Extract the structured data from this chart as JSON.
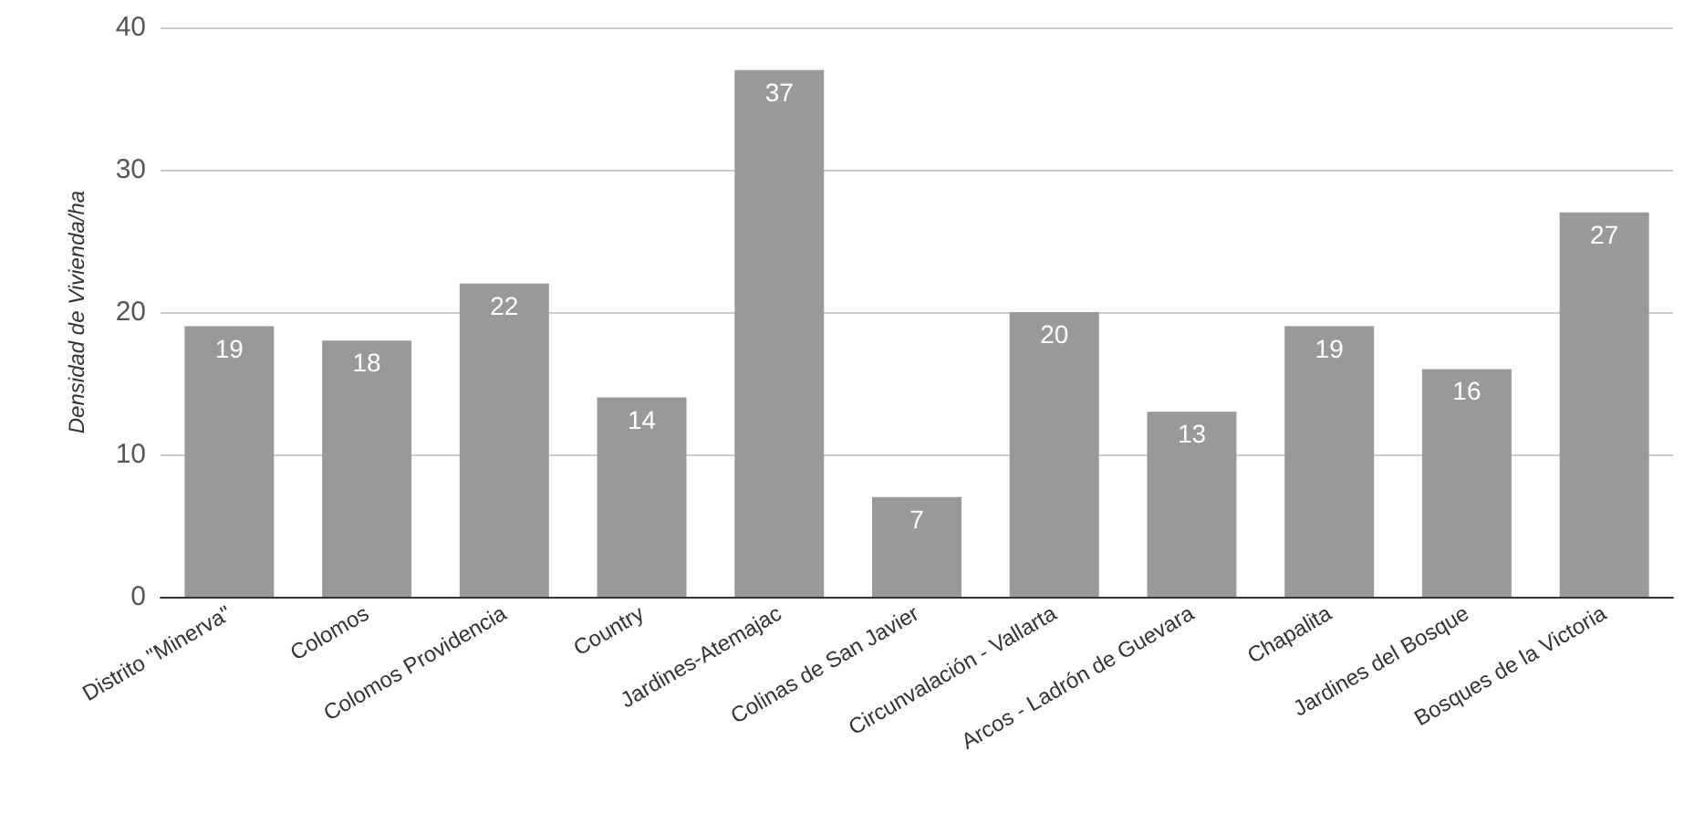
{
  "chart_data": {
    "type": "bar",
    "ylabel": "Densidad de Vivienda/ha",
    "categories": [
      "Distrito \"Minerva\"",
      "Colomos",
      "Colomos Providencia",
      "Country",
      "Jardines-Atemajac",
      "Colinas de San Javier",
      "Circunvalación - Vallarta",
      "Arcos - Ladrón de Guevara",
      "Chapalita",
      "Jardines del Bosque",
      "Bosques de la Victoria"
    ],
    "values": [
      19,
      18,
      22,
      14,
      37,
      7,
      20,
      13,
      19,
      16,
      27
    ],
    "color": "#999999",
    "ylim": [
      0,
      40
    ],
    "yticks": [
      0,
      10,
      20,
      30,
      40
    ],
    "grid": "y",
    "data_labels": true
  }
}
